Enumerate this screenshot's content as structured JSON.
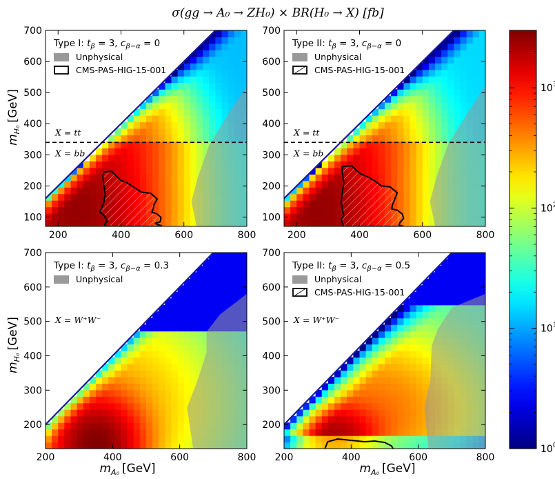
{
  "chart_data": {
    "type": "heatmap",
    "title": "σ(gg → A₀ → ZH₀) × BR(H₀ → X) [fb]",
    "xlabel_main": "m",
    "xlabel_sub": "A₀",
    "xlabel_unit": "[GeV]",
    "ylabel_main": "m",
    "ylabel_sub": "H₀",
    "ylabel_unit": "[GeV]",
    "colorbar": {
      "scale": "log",
      "range": [
        1,
        3000
      ],
      "colormap": "jet",
      "ticks": [
        {
          "value": 1,
          "label": "10",
          "exp": "0"
        },
        {
          "value": 10,
          "label": "10",
          "exp": "1"
        },
        {
          "value": 100,
          "label": "10",
          "exp": "2"
        },
        {
          "value": 1000,
          "label": "10",
          "exp": "3"
        }
      ]
    },
    "legend": {
      "unphysical_label": "Unphysical",
      "cms_label": "CMS-PAS-HIG-15-001",
      "unphysical_color": "#999999"
    },
    "panels": [
      {
        "id": "top-left",
        "title_prefix": "Type I: ",
        "tb_label": "t",
        "tb_sub": "β",
        "tb_val": " = 3, ",
        "c_label": "c",
        "c_sub": "β−α",
        "c_val": " = 0",
        "xlim": [
          160,
          800
        ],
        "ylim": [
          70,
          700
        ],
        "xticks": [
          200,
          400,
          600,
          800
        ],
        "yticks": [
          100,
          200,
          300,
          400,
          500,
          600,
          700
        ],
        "show_cms": true,
        "threshold": 340,
        "x_upper": "X = tt",
        "x_lower": "X = bb",
        "x_single": "",
        "contour": [
          [
            345,
            245
          ],
          [
            370,
            247
          ],
          [
            385,
            232
          ],
          [
            400,
            218
          ],
          [
            420,
            210
          ],
          [
            445,
            193
          ],
          [
            465,
            180
          ],
          [
            495,
            176
          ],
          [
            515,
            158
          ],
          [
            505,
            140
          ],
          [
            502,
            124
          ],
          [
            498,
            115
          ],
          [
            513,
            111
          ],
          [
            527,
            99
          ],
          [
            525,
            85
          ],
          [
            510,
            80
          ],
          [
            515,
            76
          ],
          [
            530,
            72
          ],
          [
            520,
            70
          ],
          [
            350,
            70
          ],
          [
            348,
            78
          ],
          [
            357,
            86
          ],
          [
            347,
            104
          ],
          [
            333,
            116
          ],
          [
            338,
            128
          ],
          [
            345,
            145
          ],
          [
            350,
            175
          ],
          [
            345,
            205
          ],
          [
            342,
            232
          ],
          [
            345,
            245
          ]
        ],
        "unphys_pts": [
          [
            640,
            70
          ],
          [
            624,
            150
          ],
          [
            645,
            230
          ],
          [
            680,
            330
          ],
          [
            740,
            430
          ],
          [
            800,
            520
          ],
          [
            800,
            70
          ]
        ]
      },
      {
        "id": "top-right",
        "title_prefix": "Type II: ",
        "tb_label": "t",
        "tb_sub": "β",
        "tb_val": " = 3, ",
        "c_label": "c",
        "c_sub": "β−α",
        "c_val": " = 0",
        "xlim": [
          160,
          800
        ],
        "ylim": [
          70,
          700
        ],
        "xticks": [
          200,
          400,
          600,
          800
        ],
        "yticks": [
          100,
          200,
          300,
          400,
          500,
          600,
          700
        ],
        "show_cms": true,
        "threshold": 340,
        "x_upper": "X = tt",
        "x_lower": "X = bb",
        "x_single": "",
        "contour": [
          [
            345,
            262
          ],
          [
            375,
            265
          ],
          [
            390,
            250
          ],
          [
            405,
            238
          ],
          [
            425,
            230
          ],
          [
            450,
            215
          ],
          [
            470,
            200
          ],
          [
            497,
            197
          ],
          [
            520,
            178
          ],
          [
            512,
            158
          ],
          [
            505,
            140
          ],
          [
            502,
            126
          ],
          [
            520,
            122
          ],
          [
            536,
            110
          ],
          [
            540,
            96
          ],
          [
            528,
            82
          ],
          [
            526,
            74
          ],
          [
            540,
            70
          ],
          [
            350,
            70
          ],
          [
            345,
            80
          ],
          [
            342,
            92
          ],
          [
            350,
            105
          ],
          [
            345,
            125
          ],
          [
            342,
            150
          ],
          [
            345,
            178
          ],
          [
            350,
            208
          ],
          [
            345,
            245
          ],
          [
            345,
            262
          ]
        ],
        "unphys_pts": [
          [
            640,
            70
          ],
          [
            624,
            150
          ],
          [
            645,
            230
          ],
          [
            680,
            330
          ],
          [
            740,
            430
          ],
          [
            800,
            520
          ],
          [
            800,
            70
          ]
        ]
      },
      {
        "id": "bottom-left",
        "title_prefix": "Type I: ",
        "tb_label": "t",
        "tb_sub": "β",
        "tb_val": " = 3, ",
        "c_label": "c",
        "c_sub": "β−α",
        "c_val": " = 0.3",
        "xlim": [
          200,
          800
        ],
        "ylim": [
          130,
          700
        ],
        "xticks": [
          200,
          400,
          600,
          800
        ],
        "yticks": [
          200,
          300,
          400,
          500,
          600,
          700
        ],
        "show_cms": false,
        "threshold": null,
        "x_upper": "",
        "x_lower": "",
        "x_single": "X = W⁺W⁻",
        "contour": [],
        "unphys_pts": [
          [
            640,
            130
          ],
          [
            622,
            250
          ],
          [
            650,
            320
          ],
          [
            680,
            410
          ],
          [
            680,
            470
          ],
          [
            720,
            520
          ],
          [
            800,
            580
          ],
          [
            800,
            130
          ]
        ]
      },
      {
        "id": "bottom-right",
        "title_prefix": "Type II: ",
        "tb_label": "t",
        "tb_sub": "β",
        "tb_val": " = 3, ",
        "c_label": "c",
        "c_sub": "β−α",
        "c_val": " = 0.5",
        "xlim": [
          200,
          800
        ],
        "ylim": [
          130,
          700
        ],
        "xticks": [
          200,
          400,
          600,
          800
        ],
        "yticks": [
          200,
          300,
          400,
          500,
          600,
          700
        ],
        "show_cms": true,
        "threshold": null,
        "x_upper": "",
        "x_lower": "",
        "x_single": "X = W⁺W⁻",
        "contour": [
          [
            322,
            130
          ],
          [
            330,
            150
          ],
          [
            360,
            158
          ],
          [
            400,
            154
          ],
          [
            440,
            150
          ],
          [
            470,
            152
          ],
          [
            500,
            148
          ],
          [
            520,
            138
          ],
          [
            525,
            130
          ]
        ],
        "unphys_pts": [
          [
            630,
            130
          ],
          [
            618,
            250
          ],
          [
            636,
            330
          ],
          [
            640,
            430
          ],
          [
            660,
            480
          ],
          [
            700,
            540
          ],
          [
            800,
            580
          ],
          [
            800,
            130
          ]
        ]
      }
    ]
  }
}
